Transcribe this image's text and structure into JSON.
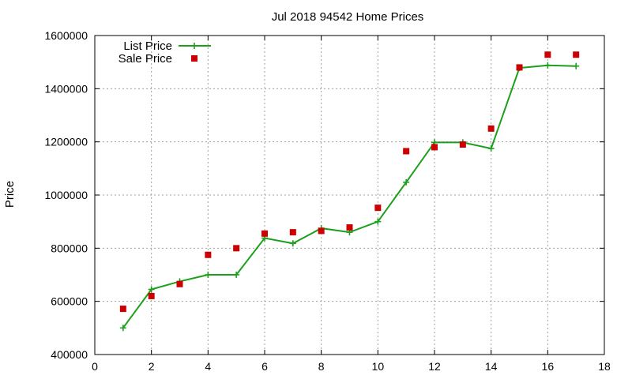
{
  "chart_data": {
    "type": "line",
    "title": "Jul 2018 94542 Home Prices",
    "xlabel": "",
    "ylabel": "Price",
    "xlim": [
      0,
      18
    ],
    "ylim": [
      400000,
      1600000
    ],
    "xticks": [
      0,
      2,
      4,
      6,
      8,
      10,
      12,
      14,
      16,
      18
    ],
    "yticks": [
      400000,
      600000,
      800000,
      1000000,
      1200000,
      1400000,
      1600000
    ],
    "grid": true,
    "legend_position": "top-left",
    "series": [
      {
        "name": "List Price",
        "style": "line-plus-markers",
        "color": "#1ca01c",
        "x": [
          1,
          2,
          3,
          4,
          5,
          6,
          7,
          8,
          9,
          10,
          11,
          12,
          13,
          14,
          15,
          16,
          17
        ],
        "y": [
          500000,
          645000,
          675000,
          700000,
          700000,
          838000,
          818000,
          875000,
          860000,
          900000,
          1048000,
          1198000,
          1198000,
          1175000,
          1478000,
          1488000,
          1485000
        ]
      },
      {
        "name": "Sale Price",
        "style": "square-markers",
        "color": "#cc0000",
        "x": [
          1,
          2,
          3,
          4,
          5,
          6,
          7,
          8,
          9,
          10,
          11,
          12,
          13,
          14,
          15,
          16,
          17
        ],
        "y": [
          572000,
          620000,
          665000,
          775000,
          800000,
          855000,
          860000,
          865000,
          878000,
          952000,
          1165000,
          1180000,
          1190000,
          1250000,
          1480000,
          1528000,
          1528000
        ]
      }
    ]
  }
}
